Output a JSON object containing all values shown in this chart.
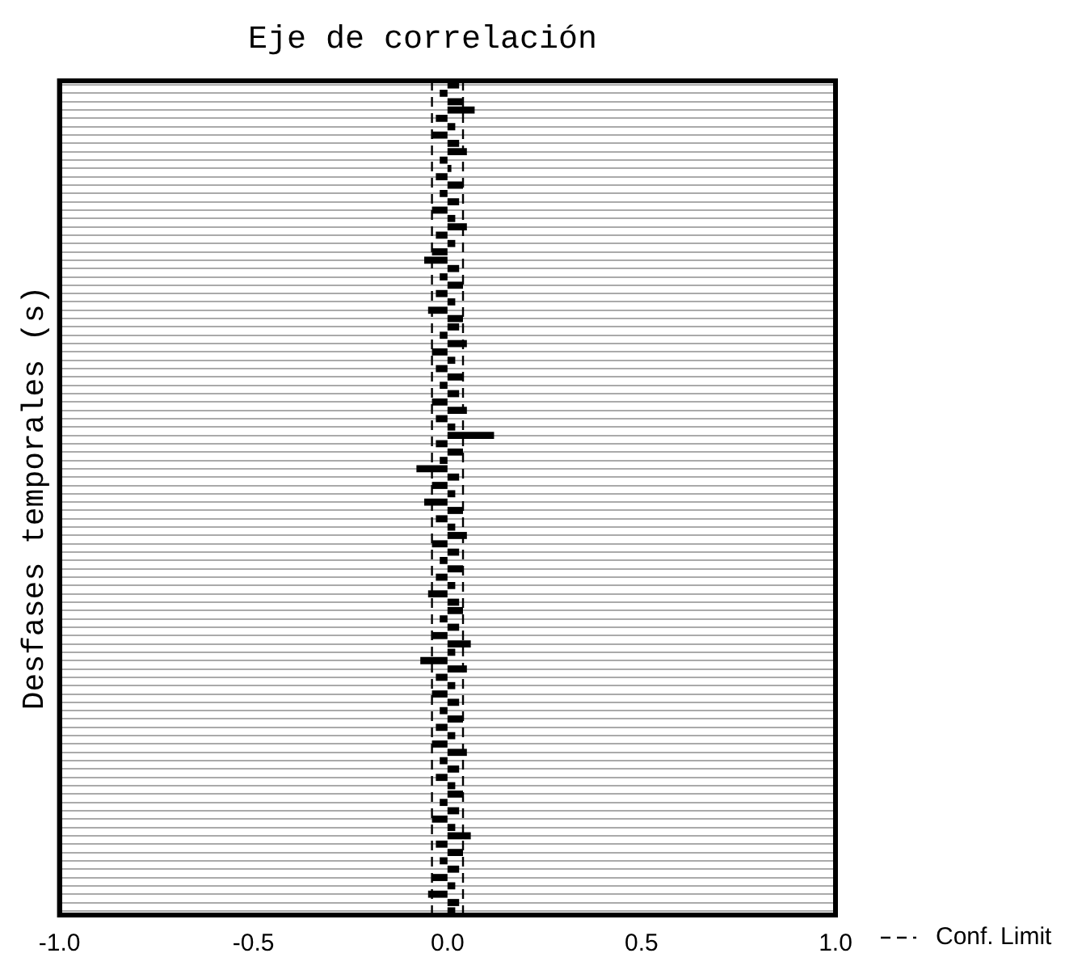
{
  "chart_data": {
    "type": "bar",
    "orientation": "horizontal",
    "title": "Eje de correlación",
    "ylabel": "Desfases temporales (s)",
    "categories": [
      null,
      null,
      null,
      null,
      null,
      null,
      null,
      null,
      null,
      null,
      null,
      null,
      null,
      null,
      null,
      null,
      null,
      null,
      null,
      null,
      null,
      null,
      null,
      null,
      null,
      null,
      null,
      null,
      null,
      null,
      null,
      null,
      null,
      null,
      null,
      null,
      null,
      null,
      null,
      null,
      null,
      null,
      null,
      null,
      null,
      null,
      null,
      null,
      null,
      null,
      null,
      null,
      null,
      null,
      null,
      null,
      null,
      null,
      null,
      null,
      null,
      null,
      null,
      null,
      null,
      null,
      null,
      null,
      null,
      null,
      null,
      null,
      null,
      null,
      null,
      null,
      null,
      null,
      null,
      null,
      null,
      null,
      null,
      null,
      null,
      null,
      null,
      null,
      null,
      null,
      null,
      null,
      null,
      null,
      null,
      null,
      null,
      null,
      null,
      null
    ],
    "values": [
      0.03,
      -0.02,
      0.04,
      0.07,
      -0.03,
      0.02,
      -0.04,
      0.03,
      0.05,
      -0.02,
      0.01,
      -0.03,
      0.04,
      -0.02,
      0.03,
      -0.04,
      0.02,
      0.05,
      -0.03,
      0.02,
      -0.04,
      -0.06,
      0.03,
      -0.02,
      0.04,
      -0.03,
      0.02,
      -0.05,
      0.04,
      0.03,
      -0.02,
      0.05,
      -0.04,
      0.02,
      -0.03,
      0.04,
      -0.02,
      0.03,
      -0.04,
      0.05,
      -0.03,
      0.02,
      0.12,
      -0.03,
      0.04,
      -0.02,
      -0.08,
      0.03,
      -0.04,
      0.02,
      -0.06,
      0.04,
      -0.03,
      0.02,
      0.05,
      -0.04,
      0.03,
      -0.02,
      0.04,
      -0.03,
      0.02,
      -0.05,
      0.03,
      0.04,
      -0.02,
      0.03,
      -0.04,
      0.06,
      0.02,
      -0.07,
      0.05,
      -0.03,
      0.02,
      -0.04,
      0.03,
      -0.02,
      0.04,
      -0.03,
      0.02,
      -0.04,
      0.05,
      -0.02,
      0.03,
      -0.03,
      0.02,
      0.04,
      -0.02,
      0.03,
      -0.04,
      0.02,
      0.06,
      -0.03,
      0.04,
      -0.02,
      0.03,
      -0.04,
      0.02,
      -0.05,
      0.03,
      0.02
    ],
    "color": "#000000",
    "xlim": [
      -1,
      1
    ],
    "xticks": [
      {
        "value": -1,
        "label": "-1.0"
      },
      {
        "value": -0.5,
        "label": "-0.5"
      },
      {
        "value": 0,
        "label": "0.0"
      },
      {
        "value": 0.5,
        "label": "0.5"
      },
      {
        "value": 1,
        "label": "1.0"
      }
    ],
    "ref_lines": [
      {
        "axis": "x",
        "value": -0.04,
        "label": "Conf. Limit",
        "line_style": "dashed"
      },
      {
        "axis": "x",
        "value": 0.04,
        "line_style": "dashed"
      }
    ],
    "grid": "y",
    "legend": "bottom right",
    "tick_labels": "x"
  }
}
